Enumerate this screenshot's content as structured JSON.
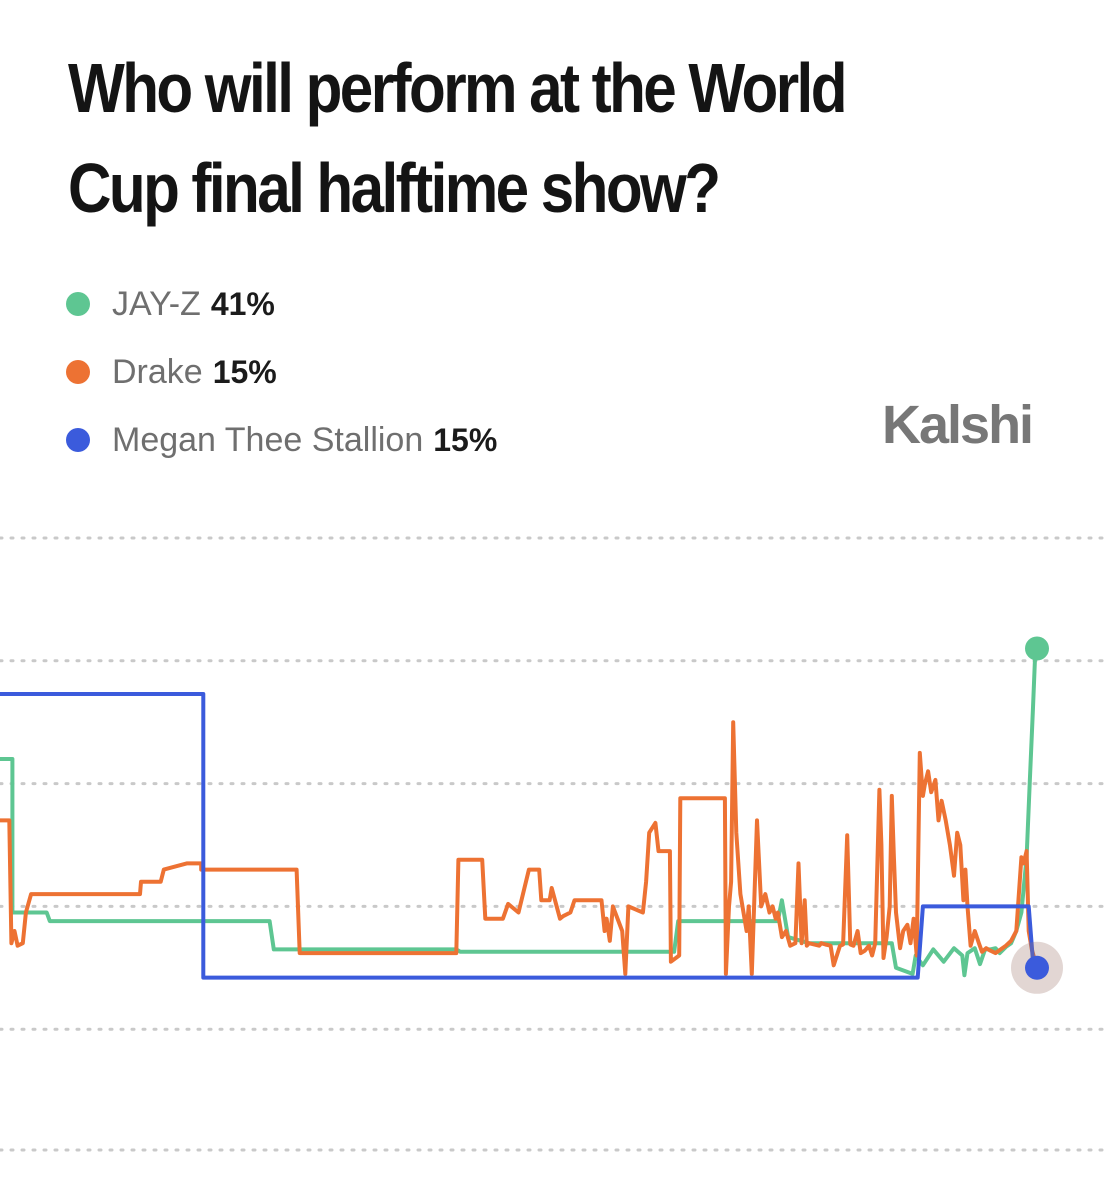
{
  "title": "Who will perform at the World Cup final halftime show?",
  "brand": {
    "name": "Kalshi"
  },
  "legend": [
    {
      "label": "JAY-Z",
      "value": "41%",
      "color": "#5ec692"
    },
    {
      "label": "Drake",
      "value": "15%",
      "color": "#ed7233"
    },
    {
      "label": "Megan Thee Stallion",
      "value": "15%",
      "color": "#3b5bdc"
    }
  ],
  "chart_data": {
    "type": "line",
    "step": true,
    "x_scale": "relative time, 0 = left edge, 100 = latest",
    "y_unit": "%",
    "ylim": [
      0,
      50
    ],
    "grid": {
      "horizontal": true,
      "style": "dotted",
      "values": [
        10,
        20,
        30,
        40,
        50
      ]
    },
    "current_value_markers": true,
    "series": [
      {
        "name": "JAY-Z",
        "color": "#5ec692",
        "points": [
          [
            0,
            32
          ],
          [
            1.2,
            32
          ],
          [
            1.2,
            19.5
          ],
          [
            4.5,
            19.5
          ],
          [
            4.8,
            18.8
          ],
          [
            26,
            18.8
          ],
          [
            26.4,
            16.5
          ],
          [
            44,
            16.5
          ],
          [
            44.4,
            16.3
          ],
          [
            65,
            16.3
          ],
          [
            65.4,
            18.8
          ],
          [
            75,
            18.8
          ],
          [
            75.4,
            20.5
          ],
          [
            76,
            17.5
          ],
          [
            78,
            17
          ],
          [
            86,
            17
          ],
          [
            86.4,
            15
          ],
          [
            88,
            14.5
          ],
          [
            88.3,
            16
          ],
          [
            89,
            15.2
          ],
          [
            90,
            16.5
          ],
          [
            91,
            15.5
          ],
          [
            92,
            16.6
          ],
          [
            92.8,
            16
          ],
          [
            93,
            14.4
          ],
          [
            93.3,
            16.2
          ],
          [
            94,
            16.6
          ],
          [
            94.5,
            15.3
          ],
          [
            95,
            16.5
          ],
          [
            95.5,
            16.5
          ],
          [
            96,
            16.6
          ],
          [
            96.4,
            16.2
          ],
          [
            97,
            16.7
          ],
          [
            97.5,
            17
          ],
          [
            98,
            18
          ],
          [
            98.5,
            19.5
          ],
          [
            99,
            24
          ],
          [
            99.3,
            30
          ],
          [
            99.6,
            36
          ],
          [
            99.8,
            40
          ],
          [
            100,
            41
          ]
        ]
      },
      {
        "name": "Drake",
        "color": "#ed7233",
        "points": [
          [
            0,
            27
          ],
          [
            0.9,
            27
          ],
          [
            1.1,
            17
          ],
          [
            1.4,
            18
          ],
          [
            1.7,
            16.8
          ],
          [
            2.2,
            17
          ],
          [
            2.5,
            19.5
          ],
          [
            3,
            21
          ],
          [
            13.5,
            21
          ],
          [
            13.6,
            22
          ],
          [
            15.5,
            22
          ],
          [
            15.8,
            23
          ],
          [
            18,
            23.5
          ],
          [
            19.4,
            23.5
          ],
          [
            19.4,
            23
          ],
          [
            28.6,
            23
          ],
          [
            28.9,
            16.2
          ],
          [
            44,
            16.2
          ],
          [
            44.2,
            23.8
          ],
          [
            46.5,
            23.8
          ],
          [
            46.8,
            19
          ],
          [
            48.5,
            19
          ],
          [
            49,
            20.2
          ],
          [
            50,
            19.5
          ],
          [
            51,
            23
          ],
          [
            52,
            23
          ],
          [
            52.2,
            20.5
          ],
          [
            53,
            20.5
          ],
          [
            53.2,
            21.5
          ],
          [
            54,
            19
          ],
          [
            54.3,
            19.2
          ],
          [
            55,
            19.5
          ],
          [
            55.4,
            20.5
          ],
          [
            58,
            20.5
          ],
          [
            58.3,
            18
          ],
          [
            58.5,
            19
          ],
          [
            58.8,
            17.2
          ],
          [
            59.1,
            20
          ],
          [
            60,
            18
          ],
          [
            60.3,
            14.5
          ],
          [
            60.6,
            20
          ],
          [
            62,
            19.5
          ],
          [
            62.3,
            22
          ],
          [
            62.6,
            26
          ],
          [
            63.2,
            26.8
          ],
          [
            63.5,
            24.5
          ],
          [
            64.6,
            24.5
          ],
          [
            64.7,
            15.5
          ],
          [
            65.5,
            16
          ],
          [
            65.6,
            28.8
          ],
          [
            69.9,
            28.8
          ],
          [
            70,
            14.5
          ],
          [
            70.3,
            20
          ],
          [
            70.5,
            22
          ],
          [
            70.7,
            35
          ],
          [
            71,
            26
          ],
          [
            71.4,
            21
          ],
          [
            72,
            18
          ],
          [
            72.2,
            20
          ],
          [
            72.5,
            14.5
          ],
          [
            73,
            27
          ],
          [
            73.4,
            20
          ],
          [
            73.8,
            21
          ],
          [
            74.2,
            19.5
          ],
          [
            74.5,
            20
          ],
          [
            74.8,
            19
          ],
          [
            75,
            19.5
          ],
          [
            75.4,
            17.5
          ],
          [
            75.8,
            18
          ],
          [
            76.2,
            16.8
          ],
          [
            76.7,
            17
          ],
          [
            77,
            23.5
          ],
          [
            77.3,
            17
          ],
          [
            77.6,
            20.5
          ],
          [
            77.8,
            16.8
          ],
          [
            78,
            17
          ],
          [
            79,
            16.8
          ],
          [
            79.2,
            17
          ],
          [
            79.6,
            16.9
          ],
          [
            80.1,
            16.8
          ],
          [
            80.4,
            15.2
          ],
          [
            81,
            16.8
          ],
          [
            81.3,
            16.9
          ],
          [
            81.7,
            25.8
          ],
          [
            82,
            16.9
          ],
          [
            82.3,
            16.8
          ],
          [
            82.7,
            18
          ],
          [
            83,
            16.2
          ],
          [
            83.4,
            16.4
          ],
          [
            83.8,
            16.8
          ],
          [
            84.1,
            16
          ],
          [
            84.4,
            17
          ],
          [
            84.8,
            29.5
          ],
          [
            85,
            25
          ],
          [
            85.2,
            15.8
          ],
          [
            85.5,
            17.5
          ],
          [
            85.8,
            20
          ],
          [
            86,
            29
          ],
          [
            86.2,
            24
          ],
          [
            86.4,
            19.5
          ],
          [
            86.8,
            16.6
          ],
          [
            87.1,
            18
          ],
          [
            87.5,
            18.5
          ],
          [
            87.8,
            17
          ],
          [
            88.1,
            19
          ],
          [
            88.4,
            16
          ],
          [
            88.7,
            32.5
          ],
          [
            89,
            29
          ],
          [
            89.2,
            30
          ],
          [
            89.5,
            31
          ],
          [
            89.8,
            29.3
          ],
          [
            90.2,
            30.3
          ],
          [
            90.5,
            27
          ],
          [
            90.8,
            28.6
          ],
          [
            91.2,
            27
          ],
          [
            91.6,
            25
          ],
          [
            92,
            22.5
          ],
          [
            92.3,
            26
          ],
          [
            92.6,
            25
          ],
          [
            92.9,
            20.5
          ],
          [
            93.1,
            23
          ],
          [
            93.3,
            20
          ],
          [
            93.6,
            16.8
          ],
          [
            94,
            18
          ],
          [
            94.4,
            17
          ],
          [
            94.7,
            16.3
          ],
          [
            95.1,
            16.6
          ],
          [
            95.5,
            16.4
          ],
          [
            96,
            16.2
          ],
          [
            96.5,
            16.5
          ],
          [
            97,
            16.8
          ],
          [
            97.5,
            17.2
          ],
          [
            98,
            18
          ],
          [
            98.5,
            24
          ],
          [
            98.7,
            23.5
          ],
          [
            99,
            24.5
          ],
          [
            99.2,
            18
          ],
          [
            99.5,
            16.5
          ],
          [
            100,
            15
          ]
        ]
      },
      {
        "name": "Megan Thee Stallion",
        "color": "#3b5bdc",
        "points": [
          [
            0,
            37.3
          ],
          [
            19.6,
            37.3
          ],
          [
            19.6,
            14.2
          ],
          [
            88,
            14.2
          ],
          [
            88.5,
            14.2
          ],
          [
            89,
            20
          ],
          [
            99.2,
            20
          ],
          [
            99.6,
            15.6
          ],
          [
            100,
            15
          ]
        ]
      }
    ]
  }
}
